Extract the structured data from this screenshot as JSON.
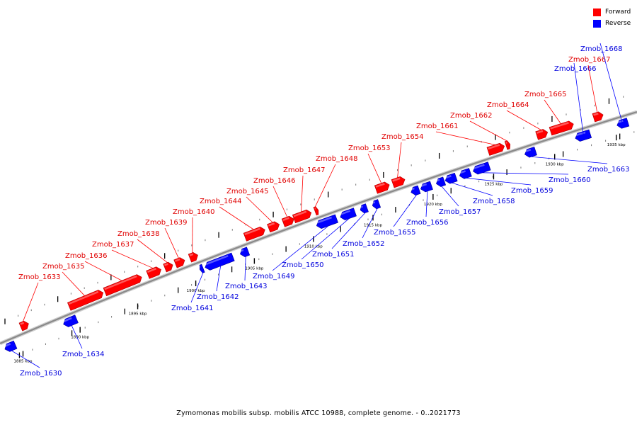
{
  "caption": "Zymomonas mobilis subsp. mobilis ATCC 10988, complete genome. - 0..2021773",
  "legend": [
    {
      "label": "Forward",
      "color": "#ff0000"
    },
    {
      "label": "Reverse",
      "color": "#0000ff"
    }
  ],
  "colors": {
    "forward": "#ff0000",
    "reverse": "#0000ff",
    "axis": "#999999"
  },
  "axis_ticks": [
    "1885 kbp",
    "1890 kbp",
    "1895 kbp",
    "1900 kbp",
    "1905 kbp",
    "1910 kbp",
    "1915 kbp",
    "1920 kbp",
    "1925 kbp",
    "1930 kbp",
    "1935 kbp"
  ],
  "genes": [
    {
      "name": "Zmob_1630",
      "strand": "reverse"
    },
    {
      "name": "Zmob_1633",
      "strand": "forward"
    },
    {
      "name": "Zmob_1634",
      "strand": "reverse"
    },
    {
      "name": "Zmob_1635",
      "strand": "forward"
    },
    {
      "name": "Zmob_1636",
      "strand": "forward"
    },
    {
      "name": "Zmob_1637",
      "strand": "forward"
    },
    {
      "name": "Zmob_1638",
      "strand": "forward"
    },
    {
      "name": "Zmob_1639",
      "strand": "forward"
    },
    {
      "name": "Zmob_1640",
      "strand": "forward"
    },
    {
      "name": "Zmob_1641",
      "strand": "reverse"
    },
    {
      "name": "Zmob_1642",
      "strand": "reverse"
    },
    {
      "name": "Zmob_1643",
      "strand": "reverse"
    },
    {
      "name": "Zmob_1644",
      "strand": "forward"
    },
    {
      "name": "Zmob_1645",
      "strand": "forward"
    },
    {
      "name": "Zmob_1646",
      "strand": "forward"
    },
    {
      "name": "Zmob_1647",
      "strand": "forward"
    },
    {
      "name": "Zmob_1648",
      "strand": "forward"
    },
    {
      "name": "Zmob_1649",
      "strand": "reverse"
    },
    {
      "name": "Zmob_1650",
      "strand": "reverse"
    },
    {
      "name": "Zmob_1651",
      "strand": "reverse"
    },
    {
      "name": "Zmob_1652",
      "strand": "reverse"
    },
    {
      "name": "Zmob_1653",
      "strand": "forward"
    },
    {
      "name": "Zmob_1654",
      "strand": "forward"
    },
    {
      "name": "Zmob_1655",
      "strand": "reverse"
    },
    {
      "name": "Zmob_1656",
      "strand": "reverse"
    },
    {
      "name": "Zmob_1657",
      "strand": "reverse"
    },
    {
      "name": "Zmob_1658",
      "strand": "reverse"
    },
    {
      "name": "Zmob_1659",
      "strand": "reverse"
    },
    {
      "name": "Zmob_1660",
      "strand": "reverse"
    },
    {
      "name": "Zmob_1661",
      "strand": "forward"
    },
    {
      "name": "Zmob_1662",
      "strand": "forward"
    },
    {
      "name": "Zmob_1663",
      "strand": "reverse"
    },
    {
      "name": "Zmob_1664",
      "strand": "forward"
    },
    {
      "name": "Zmob_1665",
      "strand": "forward"
    },
    {
      "name": "Zmob_1666",
      "strand": "reverse"
    },
    {
      "name": "Zmob_1667",
      "strand": "forward"
    },
    {
      "name": "Zmob_1668",
      "strand": "reverse"
    }
  ]
}
